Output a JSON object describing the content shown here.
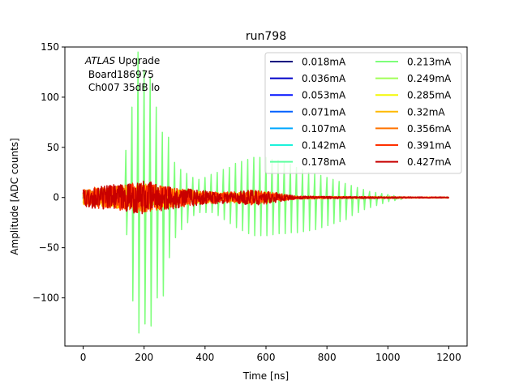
{
  "chart_data": {
    "type": "line",
    "title": "run798",
    "xlabel": "Time [ns]",
    "ylabel": "Amplitude [ADC counts]",
    "xlim": [
      -60,
      1260
    ],
    "ylim": [
      -148,
      150
    ],
    "xticks": [
      0,
      200,
      400,
      600,
      800,
      1000,
      1200
    ],
    "yticks": [
      -100,
      -50,
      0,
      50,
      100,
      150
    ],
    "xtick_labels": [
      "0",
      "200",
      "400",
      "600",
      "800",
      "1000",
      "1200"
    ],
    "ytick_labels": [
      "−100",
      "−50",
      "0",
      "50",
      "100",
      "150"
    ],
    "grid": false,
    "legend_placement": "top-right",
    "legend_columns": 2,
    "annotation": {
      "italic": "ATLAS",
      "rest": " Upgrade",
      "line2": " Board186975",
      "line3": " Ch007 35dB lo"
    },
    "series": [
      {
        "name": "0.018mA",
        "color": "#00007f"
      },
      {
        "name": "0.036mA",
        "color": "#0000c8"
      },
      {
        "name": "0.053mA",
        "color": "#0010ff"
      },
      {
        "name": "0.071mA",
        "color": "#0060ff"
      },
      {
        "name": "0.107mA",
        "color": "#00a8ff"
      },
      {
        "name": "0.142mA",
        "color": "#1cf2db"
      },
      {
        "name": "0.178mA",
        "color": "#5effa0"
      },
      {
        "name": "0.213mA",
        "color": "#7dff7a"
      },
      {
        "name": "0.249mA",
        "color": "#a0ff56"
      },
      {
        "name": "0.285mA",
        "color": "#f4f802"
      },
      {
        "name": "0.32mA",
        "color": "#ffb900"
      },
      {
        "name": "0.356mA",
        "color": "#ff7300"
      },
      {
        "name": "0.391mA",
        "color": "#ff3000"
      },
      {
        "name": "0.427mA",
        "color": "#c80000"
      }
    ],
    "spikes_0_213mA": {
      "x": [
        140,
        160,
        180,
        200,
        220,
        240,
        260,
        280,
        300,
        320,
        340,
        360,
        380,
        400,
        420,
        440,
        460,
        480,
        500,
        520,
        540,
        560,
        580,
        600,
        620,
        640,
        660,
        680,
        700,
        720,
        740,
        760,
        780,
        800,
        820,
        840,
        860,
        880,
        900,
        920,
        940,
        960,
        980,
        1000,
        1020,
        1040
      ],
      "pos": [
        47,
        90,
        145,
        127,
        120,
        90,
        65,
        60,
        35,
        28,
        24,
        20,
        18,
        20,
        23,
        25,
        28,
        30,
        34,
        36,
        38,
        40,
        40,
        40,
        38,
        37,
        35,
        33,
        30,
        28,
        25,
        24,
        22,
        20,
        18,
        16,
        14,
        12,
        10,
        8,
        6,
        5,
        4,
        3,
        2,
        1
      ],
      "neg": [
        -37,
        -103,
        -135,
        -126,
        -128,
        -100,
        -98,
        -60,
        -40,
        -32,
        -25,
        -18,
        -15,
        -15,
        -15,
        -18,
        -22,
        -26,
        -30,
        -33,
        -36,
        -38,
        -38,
        -38,
        -37,
        -36,
        -36,
        -35,
        -35,
        -34,
        -33,
        -32,
        -30,
        -28,
        -26,
        -24,
        -22,
        -18,
        -15,
        -12,
        -10,
        -8,
        -6,
        -4,
        -3,
        -2
      ]
    },
    "noise_envelope": {
      "x": [
        0,
        100,
        150,
        200,
        250,
        300,
        350,
        400,
        450,
        500,
        550,
        600,
        700,
        800,
        900,
        1000,
        1100,
        1200
      ],
      "amp": [
        10,
        13,
        15,
        17,
        14,
        11,
        9,
        7,
        6,
        6,
        8,
        7,
        1.5,
        1.2,
        1,
        0.8,
        0.6,
        0.5
      ]
    }
  }
}
